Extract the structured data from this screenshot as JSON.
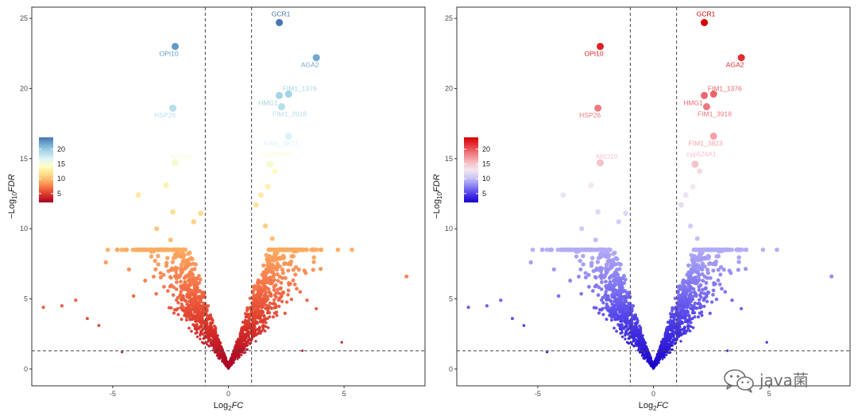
{
  "watermark": {
    "text": "java菌",
    "icon": "wechat-icon"
  },
  "chart_data": [
    {
      "type": "scatter",
      "title": "",
      "xlabel_base": "Log",
      "xlabel_sub": "2",
      "xlabel_italic": "FC",
      "ylabel_prefix": "−Log",
      "ylabel_sub": "10",
      "ylabel_italic": "FDR",
      "xlim": [
        -8.5,
        8.5
      ],
      "ylim": [
        -1.2,
        25.8
      ],
      "xticks": [
        -5,
        0,
        5
      ],
      "yticks": [
        0,
        5,
        10,
        15,
        20,
        25
      ],
      "fc_cutoff": [
        -1,
        1
      ],
      "fdr_cutoff_y": 1.3,
      "grid": false,
      "legend_position": "left",
      "legend_ticks": [
        5,
        10,
        15,
        20
      ],
      "color_stops": [
        "#a50026",
        "#d73027",
        "#f46d43",
        "#fdae61",
        "#fee090",
        "#ffffbf",
        "#e0f3f8",
        "#abd9e9",
        "#74add1",
        "#4575b4"
      ],
      "labeled_genes": [
        {
          "name": "GCR1",
          "x": 2.2,
          "y": 24.7
        },
        {
          "name": "OPI10",
          "x": -2.3,
          "y": 23.0
        },
        {
          "name": "AGA2",
          "x": 3.8,
          "y": 22.2
        },
        {
          "name": "FIM1_1376",
          "x": 2.6,
          "y": 19.6
        },
        {
          "name": "HMG1",
          "x": 2.2,
          "y": 19.5
        },
        {
          "name": "FIM1_3918",
          "x": 2.3,
          "y": 18.7
        },
        {
          "name": "HSP26",
          "x": -2.4,
          "y": 18.6
        },
        {
          "name": "FIM1_3823",
          "x": 2.6,
          "y": 16.6
        },
        {
          "name": "ARO10",
          "x": -2.3,
          "y": 14.7
        },
        {
          "name": "cyp524A1",
          "x": 1.8,
          "y": 14.6
        }
      ]
    },
    {
      "type": "scatter",
      "title": "",
      "xlabel_base": "Log",
      "xlabel_sub": "2",
      "xlabel_italic": "FC",
      "ylabel_prefix": "−Log",
      "ylabel_sub": "10",
      "ylabel_italic": "FDR",
      "xlim": [
        -8.5,
        8.5
      ],
      "ylim": [
        -1.2,
        25.8
      ],
      "xticks": [
        -5,
        0,
        5
      ],
      "yticks": [
        0,
        5,
        10,
        15,
        20,
        25
      ],
      "fc_cutoff": [
        -1,
        1
      ],
      "fdr_cutoff_y": 1.3,
      "grid": false,
      "legend_position": "left",
      "legend_ticks": [
        5,
        10,
        15,
        20
      ],
      "color_stops": [
        "#1a00c8",
        "#4a3ae6",
        "#8a80f2",
        "#c9c4f8",
        "#f3e6f0",
        "#f6b8bd",
        "#ef7b82",
        "#e6383f",
        "#d60000"
      ],
      "labeled_genes": [
        {
          "name": "GCR1",
          "x": 2.2,
          "y": 24.7
        },
        {
          "name": "OPI10",
          "x": -2.3,
          "y": 23.0
        },
        {
          "name": "AGA2",
          "x": 3.8,
          "y": 22.2
        },
        {
          "name": "FIM1_1376",
          "x": 2.6,
          "y": 19.6
        },
        {
          "name": "HMG1",
          "x": 2.2,
          "y": 19.5
        },
        {
          "name": "FIM1_3918",
          "x": 2.3,
          "y": 18.7
        },
        {
          "name": "HSP26",
          "x": -2.4,
          "y": 18.6
        },
        {
          "name": "FIM1_3823",
          "x": 2.6,
          "y": 16.6
        },
        {
          "name": "ARO10",
          "x": -2.3,
          "y": 14.7
        },
        {
          "name": "cyp524A1",
          "x": 1.8,
          "y": 14.6
        }
      ]
    }
  ]
}
